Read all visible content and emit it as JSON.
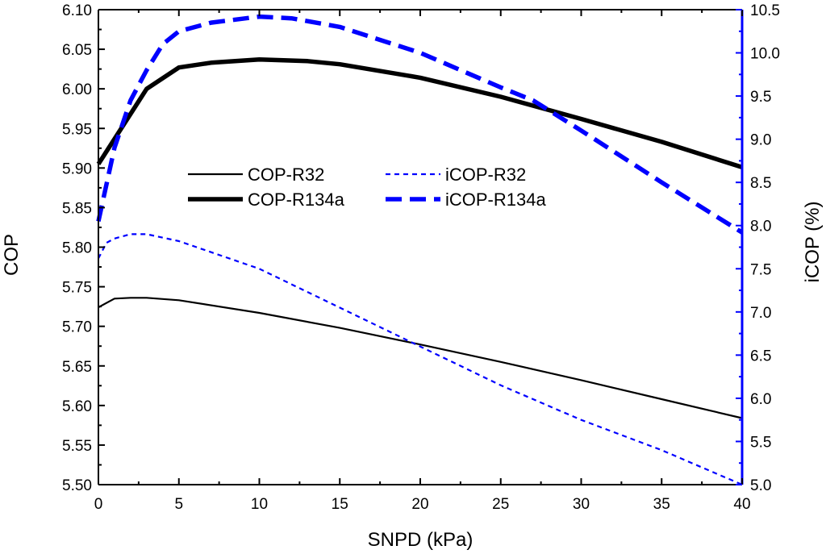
{
  "chart_data": {
    "type": "line",
    "xlabel": "SNPD (kPa)",
    "ylabel_left": "COP",
    "ylabel_right": "iCOP (%)",
    "xlim": [
      0,
      40
    ],
    "ylim_left": [
      5.5,
      6.1
    ],
    "ylim_right": [
      5.0,
      10.5
    ],
    "x_ticks": [
      "0",
      "5",
      "10",
      "15",
      "20",
      "25",
      "30",
      "35",
      "40"
    ],
    "y_left_ticks": [
      "5.50",
      "5.55",
      "5.60",
      "5.65",
      "5.70",
      "5.75",
      "5.80",
      "5.85",
      "5.90",
      "5.95",
      "6.00",
      "6.05",
      "6.10"
    ],
    "y_right_ticks": [
      "5.0",
      "5.5",
      "6.0",
      "6.5",
      "7.0",
      "7.5",
      "8.0",
      "8.5",
      "9.0",
      "9.5",
      "10.0",
      "10.5"
    ],
    "grid": false,
    "legend_position": "center-left",
    "right_axis_color": "#0000ff",
    "series": [
      {
        "name": "COP-R32",
        "axis": "left",
        "color": "#000000",
        "style": "solid-thin",
        "x": [
          0,
          1,
          2,
          3,
          5,
          10,
          15,
          20,
          25,
          30,
          35,
          40
        ],
        "y": [
          5.724,
          5.735,
          5.736,
          5.736,
          5.733,
          5.717,
          5.698,
          5.677,
          5.655,
          5.632,
          5.608,
          5.584
        ]
      },
      {
        "name": "COP-R134a",
        "axis": "left",
        "color": "#000000",
        "style": "solid-thick",
        "x": [
          0,
          3,
          5,
          7,
          10,
          13,
          15,
          20,
          25,
          30,
          35,
          40
        ],
        "y": [
          5.905,
          6.0,
          6.027,
          6.033,
          6.037,
          6.035,
          6.031,
          6.014,
          5.99,
          5.962,
          5.933,
          5.901
        ]
      },
      {
        "name": "iCOP-R32",
        "axis": "right",
        "color": "#0000ff",
        "style": "dashed-thin",
        "x": [
          0,
          0.5,
          1,
          2,
          3,
          5,
          10,
          15,
          20,
          25,
          30,
          35,
          40
        ],
        "y": [
          7.62,
          7.8,
          7.85,
          7.9,
          7.9,
          7.82,
          7.5,
          7.05,
          6.6,
          6.15,
          5.75,
          5.4,
          5.0
        ]
      },
      {
        "name": "iCOP-R134a",
        "axis": "right",
        "color": "#0000ff",
        "style": "dashed-thick",
        "x": [
          0,
          1,
          2,
          3,
          4,
          5,
          7,
          10,
          12,
          15,
          20,
          25,
          27,
          30,
          35,
          40
        ],
        "y": [
          8.05,
          8.9,
          9.45,
          9.8,
          10.1,
          10.25,
          10.35,
          10.42,
          10.4,
          10.3,
          10.0,
          9.6,
          9.45,
          9.1,
          8.5,
          7.92
        ]
      }
    ]
  }
}
